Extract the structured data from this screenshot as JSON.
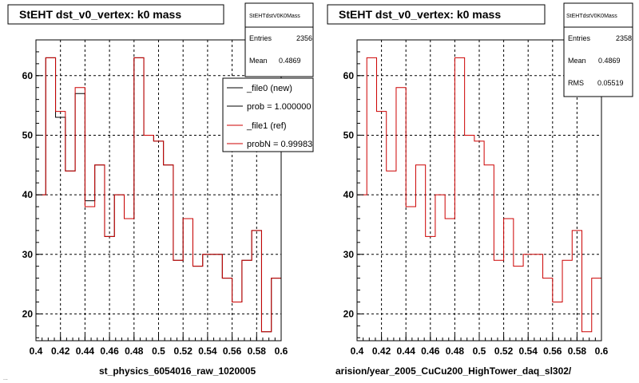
{
  "colors": {
    "ref": "#cc0000",
    "new": "#000000"
  },
  "footer_text": "...",
  "chart_data": [
    {
      "type": "histogram",
      "title": "StEHT dst_v0_vertex: k0 mass",
      "xlabel": "st_physics_6054016_raw_1020005",
      "xlim": [
        0.4,
        0.6
      ],
      "ylim": [
        15.5,
        66
      ],
      "xticks": [
        0.4,
        0.42,
        0.44,
        0.46,
        0.48,
        0.5,
        0.52,
        0.54,
        0.56,
        0.58,
        0.6
      ],
      "xtick_labels": [
        "0.4",
        "0.42",
        "0.44",
        "0.46",
        "0.48",
        "0.5",
        "0.52",
        "0.54",
        "0.56",
        "0.58",
        "0.6"
      ],
      "yticks": [
        20,
        30,
        40,
        50,
        60
      ],
      "ytick_labels": [
        "20",
        "30",
        "40",
        "50",
        "60"
      ],
      "grid": true,
      "stats": {
        "name": "StEHTdstV0K0Mass",
        "entries_label": "Entries",
        "entries": "2356",
        "mean_label": "Mean",
        "mean": "0.4869"
      },
      "legend": {
        "placement": "top-right",
        "entries": [
          {
            "label": "_file0 (new)",
            "color": "#000000"
          },
          {
            "label": "prob = 1.000000",
            "color": "#000000"
          },
          {
            "label": "_file1 (ref)",
            "color": "#cc0000"
          },
          {
            "label": "probN = 0.99983",
            "color": "#cc0000"
          }
        ]
      },
      "series": [
        {
          "name": "_file0 (new)",
          "color": "#000000",
          "values": [
            40,
            63,
            53,
            44,
            57,
            39,
            45,
            33,
            40,
            36,
            63,
            50,
            49,
            45,
            29,
            36,
            28,
            30,
            30,
            26,
            22,
            29,
            34,
            17,
            26
          ]
        },
        {
          "name": "_file1 (ref)",
          "color": "#cc0000",
          "values": [
            40,
            63,
            54,
            44,
            58,
            38,
            45,
            33,
            40,
            36,
            63,
            50,
            49,
            45,
            29,
            36,
            28,
            30,
            30,
            26,
            22,
            29,
            34,
            17,
            26
          ]
        }
      ]
    },
    {
      "type": "histogram",
      "title": "StEHT dst_v0_vertex: k0 mass",
      "xlabel": "arision/year_2005_CuCu200_HighTower_daq_sl302/",
      "xlim": [
        0.4,
        0.6
      ],
      "ylim": [
        15.5,
        66
      ],
      "xticks": [
        0.4,
        0.42,
        0.44,
        0.46,
        0.48,
        0.5,
        0.52,
        0.54,
        0.56,
        0.58,
        0.6
      ],
      "xtick_labels": [
        "0.4",
        "0.42",
        "0.44",
        "0.46",
        "0.48",
        "0.5",
        "0.52",
        "0.54",
        "0.56",
        "0.58",
        "0.6"
      ],
      "yticks": [
        20,
        30,
        40,
        50,
        60
      ],
      "ytick_labels": [
        "20",
        "30",
        "40",
        "50",
        "60"
      ],
      "grid": true,
      "stats": {
        "name": "StEHTdstV0K0Mass",
        "entries_label": "Entries",
        "entries": "2358",
        "mean_label": "Mean",
        "mean": "0.4869",
        "rms_label": "RMS",
        "rms": "0.05519"
      },
      "series": [
        {
          "name": "",
          "color": "#cc0000",
          "values": [
            40,
            63,
            54,
            44,
            58,
            38,
            45,
            33,
            40,
            36,
            63,
            50,
            49,
            45,
            29,
            36,
            28,
            30,
            30,
            26,
            22,
            29,
            34,
            17,
            26
          ]
        }
      ]
    }
  ]
}
